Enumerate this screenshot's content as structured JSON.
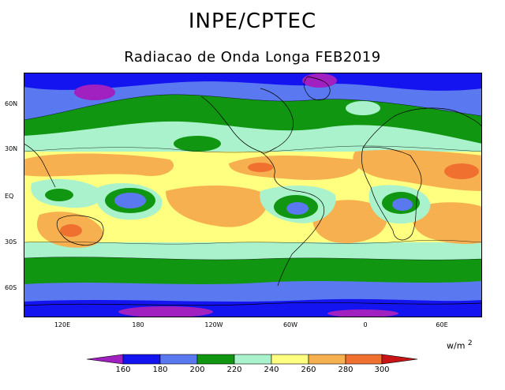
{
  "header": {
    "title": "INPE/CPTEC",
    "subtitle": "Radiacao de Onda Longa FEB2019"
  },
  "map": {
    "lat_labels": [
      "60N",
      "30N",
      "EQ",
      "30S",
      "60S"
    ],
    "lon_labels": [
      "120E",
      "180",
      "120W",
      "60W",
      "0",
      "60E"
    ]
  },
  "legend": {
    "units_base": "w/m",
    "units_exp": "2",
    "levels": [
      "160",
      "180",
      "200",
      "220",
      "240",
      "260",
      "280",
      "300"
    ],
    "colors": {
      "lt160": "#a020c0",
      "c160_180": "#1414f0",
      "c180_200": "#5a78f0",
      "c200_220": "#119611",
      "c220_240": "#aaf2cc",
      "c240_260": "#ffff80",
      "c260_280": "#f7b050",
      "c280_300": "#f07030",
      "gt300": "#c81414"
    }
  }
}
